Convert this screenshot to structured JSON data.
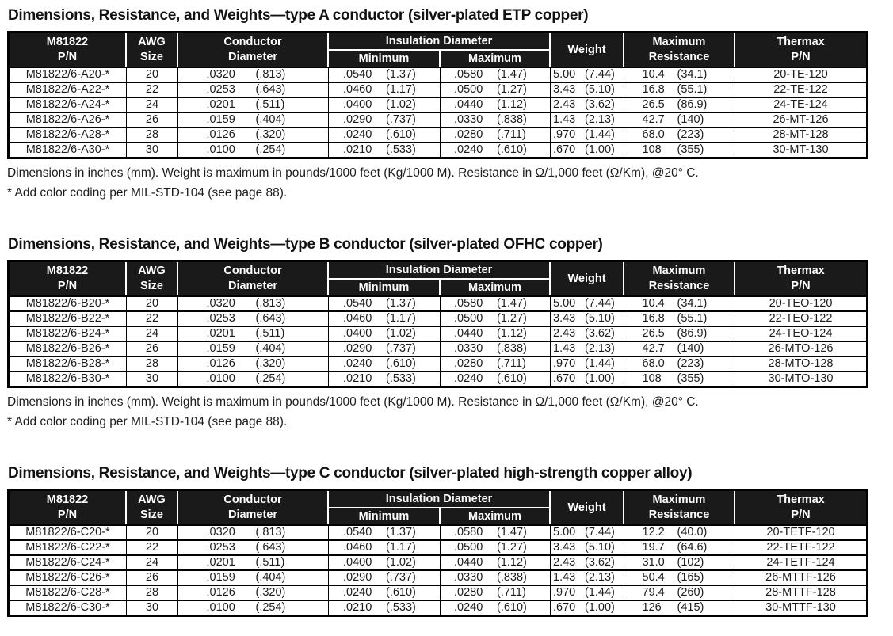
{
  "page": {
    "background": "#ffffff",
    "text_color": "#1c1c1c",
    "header_bg": "#1a1a1a",
    "header_text": "#ffffff",
    "border_color": "#000000"
  },
  "table_header": {
    "pn_line1": "M81822",
    "pn_line2": "P/N",
    "awg_line1": "AWG",
    "awg_line2": "Size",
    "conductor_line1": "Conductor",
    "conductor_line2": "Diameter",
    "insulation_group": "Insulation Diameter",
    "insulation_min": "Minimum",
    "insulation_max": "Maximum",
    "weight": "Weight",
    "resistance_line1": "Maximum",
    "resistance_line2": "Resistance",
    "thermax_line1": "Thermax",
    "thermax_line2": "P/N"
  },
  "sections": [
    {
      "id": "type-a",
      "title": "Dimensions, Resistance, and Weights—type A conductor (silver-plated ETP copper)",
      "rows": [
        {
          "pn": "M81822/6-A20-*",
          "awg": "20",
          "cond": [
            ".0320",
            "(.813)"
          ],
          "ins_min": [
            ".0540",
            "(1.37)"
          ],
          "ins_max": [
            ".0580",
            "(1.47)"
          ],
          "weight": [
            "5.00",
            "(7.44)"
          ],
          "res": [
            "10.4",
            "(34.1)"
          ],
          "thermax": "20-TE-120"
        },
        {
          "pn": "M81822/6-A22-*",
          "awg": "22",
          "cond": [
            ".0253",
            "(.643)"
          ],
          "ins_min": [
            ".0460",
            "(1.17)"
          ],
          "ins_max": [
            ".0500",
            "(1.27)"
          ],
          "weight": [
            "3.43",
            "(5.10)"
          ],
          "res": [
            "16.8",
            "(55.1)"
          ],
          "thermax": "22-TE-122"
        },
        {
          "pn": "M81822/6-A24-*",
          "awg": "24",
          "cond": [
            ".0201",
            "(.511)"
          ],
          "ins_min": [
            ".0400",
            "(1.02)"
          ],
          "ins_max": [
            ".0440",
            "(1.12)"
          ],
          "weight": [
            "2.43",
            "(3.62)"
          ],
          "res": [
            "26.5",
            "(86.9)"
          ],
          "thermax": "24-TE-124"
        },
        {
          "pn": "M81822/6-A26-*",
          "awg": "26",
          "cond": [
            ".0159",
            "(.404)"
          ],
          "ins_min": [
            ".0290",
            "(.737)"
          ],
          "ins_max": [
            ".0330",
            "(.838)"
          ],
          "weight": [
            "1.43",
            "(2.13)"
          ],
          "res": [
            "42.7",
            "(140)"
          ],
          "thermax": "26-MT-126"
        },
        {
          "pn": "M81822/6-A28-*",
          "awg": "28",
          "cond": [
            ".0126",
            "(.320)"
          ],
          "ins_min": [
            ".0240",
            "(.610)"
          ],
          "ins_max": [
            ".0280",
            "(.711)"
          ],
          "weight": [
            ".970",
            "(1.44)"
          ],
          "res": [
            "68.0",
            "(223)"
          ],
          "thermax": "28-MT-128"
        },
        {
          "pn": "M81822/6-A30-*",
          "awg": "30",
          "cond": [
            ".0100",
            "(.254)"
          ],
          "ins_min": [
            ".0210",
            "(.533)"
          ],
          "ins_max": [
            ".0240",
            "(.610)"
          ],
          "weight": [
            ".670",
            "(1.00)"
          ],
          "res": [
            "108",
            "(355)"
          ],
          "thermax": "30-MT-130"
        }
      ],
      "footnotes": [
        "Dimensions in inches (mm).  Weight is maximum in pounds/1000 feet (Kg/1000 M).  Resistance in Ω/1,000 feet (Ω/Km), @20° C.",
        "* Add color coding per MIL-STD-104 (see page 88)."
      ]
    },
    {
      "id": "type-b",
      "title": "Dimensions, Resistance, and Weights—type B conductor (silver-plated OFHC copper)",
      "rows": [
        {
          "pn": "M81822/6-B20-*",
          "awg": "20",
          "cond": [
            ".0320",
            "(.813)"
          ],
          "ins_min": [
            ".0540",
            "(1.37)"
          ],
          "ins_max": [
            ".0580",
            "(1.47)"
          ],
          "weight": [
            "5.00",
            "(7.44)"
          ],
          "res": [
            "10.4",
            "(34.1)"
          ],
          "thermax": "20-TEO-120"
        },
        {
          "pn": "M81822/6-B22-*",
          "awg": "22",
          "cond": [
            ".0253",
            "(.643)"
          ],
          "ins_min": [
            ".0460",
            "(1.17)"
          ],
          "ins_max": [
            ".0500",
            "(1.27)"
          ],
          "weight": [
            "3.43",
            "(5.10)"
          ],
          "res": [
            "16.8",
            "(55.1)"
          ],
          "thermax": "22-TEO-122"
        },
        {
          "pn": "M81822/6-B24-*",
          "awg": "24",
          "cond": [
            ".0201",
            "(.511)"
          ],
          "ins_min": [
            ".0400",
            "(1.02)"
          ],
          "ins_max": [
            ".0440",
            "(1.12)"
          ],
          "weight": [
            "2.43",
            "(3.62)"
          ],
          "res": [
            "26.5",
            "(86.9)"
          ],
          "thermax": "24-TEO-124"
        },
        {
          "pn": "M81822/6-B26-*",
          "awg": "26",
          "cond": [
            ".0159",
            "(.404)"
          ],
          "ins_min": [
            ".0290",
            "(.737)"
          ],
          "ins_max": [
            ".0330",
            "(.838)"
          ],
          "weight": [
            "1.43",
            "(2.13)"
          ],
          "res": [
            "42.7",
            "(140)"
          ],
          "thermax": "26-MTO-126"
        },
        {
          "pn": "M81822/6-B28-*",
          "awg": "28",
          "cond": [
            ".0126",
            "(.320)"
          ],
          "ins_min": [
            ".0240",
            "(.610)"
          ],
          "ins_max": [
            ".0280",
            "(.711)"
          ],
          "weight": [
            ".970",
            "(1.44)"
          ],
          "res": [
            "68.0",
            "(223)"
          ],
          "thermax": "28-MTO-128"
        },
        {
          "pn": "M81822/6-B30-*",
          "awg": "30",
          "cond": [
            ".0100",
            "(.254)"
          ],
          "ins_min": [
            ".0210",
            "(.533)"
          ],
          "ins_max": [
            ".0240",
            "(.610)"
          ],
          "weight": [
            ".670",
            "(1.00)"
          ],
          "res": [
            "108",
            "(355)"
          ],
          "thermax": "30-MTO-130"
        }
      ],
      "footnotes": [
        "Dimensions in inches (mm).  Weight is maximum in pounds/1000 feet (Kg/1000 M).  Resistance in Ω/1,000 feet (Ω/Km), @20° C.",
        "* Add color coding per MIL-STD-104 (see page 88)."
      ]
    },
    {
      "id": "type-c",
      "title": "Dimensions, Resistance, and Weights—type C conductor (silver-plated high-strength copper alloy)",
      "rows": [
        {
          "pn": "M81822/6-C20-*",
          "awg": "20",
          "cond": [
            ".0320",
            "(.813)"
          ],
          "ins_min": [
            ".0540",
            "(1.37)"
          ],
          "ins_max": [
            ".0580",
            "(1.47)"
          ],
          "weight": [
            "5.00",
            "(7.44)"
          ],
          "res": [
            "12.2",
            "(40.0)"
          ],
          "thermax": "20-TETF-120"
        },
        {
          "pn": "M81822/6-C22-*",
          "awg": "22",
          "cond": [
            ".0253",
            "(.643)"
          ],
          "ins_min": [
            ".0460",
            "(1.17)"
          ],
          "ins_max": [
            ".0500",
            "(1.27)"
          ],
          "weight": [
            "3.43",
            "(5.10)"
          ],
          "res": [
            "19.7",
            "(64.6)"
          ],
          "thermax": "22-TETF-122"
        },
        {
          "pn": "M81822/6-C24-*",
          "awg": "24",
          "cond": [
            ".0201",
            "(.511)"
          ],
          "ins_min": [
            ".0400",
            "(1.02)"
          ],
          "ins_max": [
            ".0440",
            "(1.12)"
          ],
          "weight": [
            "2.43",
            "(3.62)"
          ],
          "res": [
            "31.0",
            "(102)"
          ],
          "thermax": "24-TETF-124"
        },
        {
          "pn": "M81822/6-C26-*",
          "awg": "26",
          "cond": [
            ".0159",
            "(.404)"
          ],
          "ins_min": [
            ".0290",
            "(.737)"
          ],
          "ins_max": [
            ".0330",
            "(.838)"
          ],
          "weight": [
            "1.43",
            "(2.13)"
          ],
          "res": [
            "50.4",
            "(165)"
          ],
          "thermax": "26-MTTF-126"
        },
        {
          "pn": "M81822/6-C28-*",
          "awg": "28",
          "cond": [
            ".0126",
            "(.320)"
          ],
          "ins_min": [
            ".0240",
            "(.610)"
          ],
          "ins_max": [
            ".0280",
            "(.711)"
          ],
          "weight": [
            ".970",
            "(1.44)"
          ],
          "res": [
            "79.4",
            "(260)"
          ],
          "thermax": "28-MTTF-128"
        },
        {
          "pn": "M81822/6-C30-*",
          "awg": "30",
          "cond": [
            ".0100",
            "(.254)"
          ],
          "ins_min": [
            ".0210",
            "(.533)"
          ],
          "ins_max": [
            ".0240",
            "(.610)"
          ],
          "weight": [
            ".670",
            "(1.00)"
          ],
          "res": [
            "126",
            "(415)"
          ],
          "thermax": "30-MTTF-130"
        }
      ],
      "footnotes": []
    }
  ]
}
